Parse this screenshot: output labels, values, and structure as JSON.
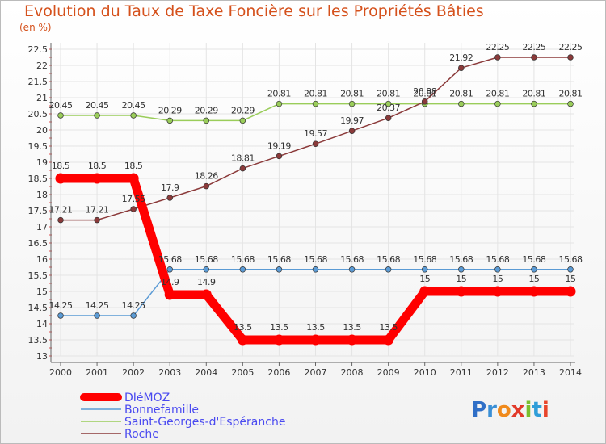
{
  "title": "Evolution du Taux de Taxe Foncière sur les Propriétés Bâties",
  "unit": "(en %)",
  "logo": {
    "text": "Proxiti",
    "colors": [
      "#2f6fc7",
      "#3a8fd6",
      "#f08a1c",
      "#e23a2a",
      "#7bbf2e",
      "#2f9ed8",
      "#e8452c"
    ]
  },
  "chart_data": {
    "type": "line",
    "title": "Evolution du Taux de Taxe Foncière sur les Propriétés Bâties",
    "ylabel": "(en %)",
    "x": [
      "2000",
      "2001",
      "2002",
      "2003",
      "2004",
      "2005",
      "2006",
      "2007",
      "2008",
      "2009",
      "2010",
      "2011",
      "2012",
      "2013",
      "2014"
    ],
    "ylim": [
      13,
      22.5
    ],
    "yticks": [
      "13",
      "13.5",
      "14",
      "14.5",
      "15",
      "15.5",
      "16",
      "16.5",
      "17",
      "17.5",
      "18",
      "18.5",
      "19",
      "19.5",
      "20",
      "20.5",
      "21",
      "21.5",
      "22",
      "22.5"
    ],
    "series": [
      {
        "name": "DIéMOZ",
        "color": "#ff0000",
        "values": [
          18.5,
          18.5,
          18.5,
          14.9,
          14.9,
          13.5,
          13.5,
          13.5,
          13.5,
          13.5,
          15,
          15,
          15,
          15,
          15
        ],
        "labels": [
          "18.5",
          "18.5",
          "18.5",
          "14.9",
          "14.9",
          "13.5",
          "13.5",
          "13.5",
          "13.5",
          "13.5",
          "15",
          "15",
          "15",
          "15",
          "15"
        ]
      },
      {
        "name": "Bonnefamille",
        "color": "#5b9bd5",
        "values": [
          14.25,
          14.25,
          14.25,
          15.68,
          15.68,
          15.68,
          15.68,
          15.68,
          15.68,
          15.68,
          15.68,
          15.68,
          15.68,
          15.68,
          15.68
        ],
        "labels": [
          "14.25",
          "14.25",
          "14.25",
          "15.68",
          "15.68",
          "15.68",
          "15.68",
          "15.68",
          "15.68",
          "15.68",
          "15.68",
          "15.68",
          "15.68",
          "15.68",
          "15.68"
        ]
      },
      {
        "name": "Saint-Georges-d'Espéranche",
        "color": "#9acd5a",
        "values": [
          20.45,
          20.45,
          20.45,
          20.29,
          20.29,
          20.29,
          20.81,
          20.81,
          20.81,
          20.81,
          20.81,
          20.81,
          20.81,
          20.81,
          20.81
        ],
        "labels": [
          "20.45",
          "20.45",
          "20.45",
          "20.29",
          "20.29",
          "20.29",
          "20.81",
          "20.81",
          "20.81",
          "20.81",
          "20.81",
          "20.81",
          "20.81",
          "20.81",
          "20.81"
        ]
      },
      {
        "name": "Roche",
        "color": "#8b3a3a",
        "values": [
          17.21,
          17.21,
          17.55,
          17.9,
          18.26,
          18.81,
          19.19,
          19.57,
          19.97,
          20.37,
          20.88,
          21.92,
          22.25,
          22.25,
          22.25
        ],
        "labels": [
          "17.21",
          "17.21",
          "17.55",
          "17.9",
          "18.26",
          "18.81",
          "19.19",
          "19.57",
          "19.97",
          "20.37",
          "20.88",
          "21.92",
          "22.25",
          "22.25",
          "22.25"
        ]
      }
    ],
    "legend_position": "bottom-left"
  }
}
